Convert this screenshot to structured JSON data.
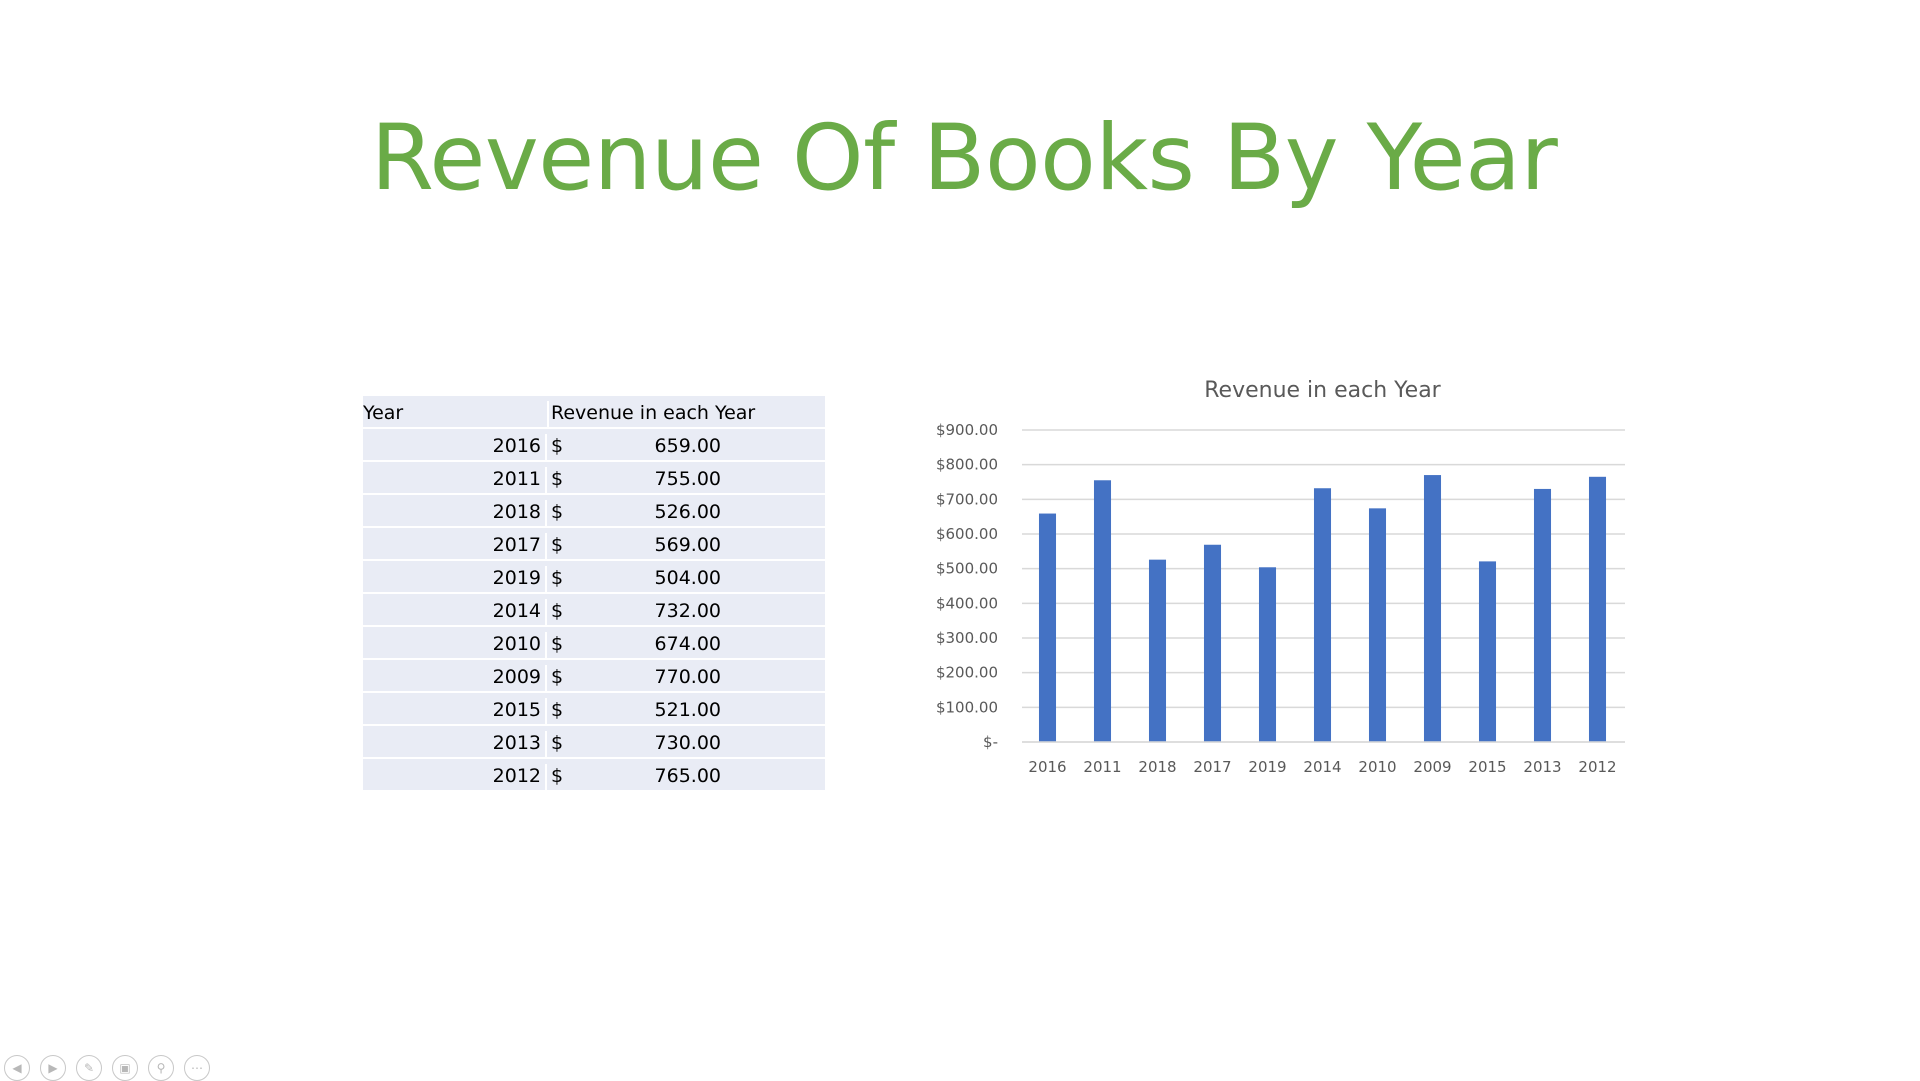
{
  "slide_title": "Revenue Of Books By Year",
  "table": {
    "headers": [
      "Year",
      "Revenue in each Year"
    ],
    "currency": "$",
    "rows": [
      {
        "year": "2016",
        "value": "659.00"
      },
      {
        "year": "2011",
        "value": "755.00"
      },
      {
        "year": "2018",
        "value": "526.00"
      },
      {
        "year": "2017",
        "value": "569.00"
      },
      {
        "year": "2019",
        "value": "504.00"
      },
      {
        "year": "2014",
        "value": "732.00"
      },
      {
        "year": "2010",
        "value": "674.00"
      },
      {
        "year": "2009",
        "value": "770.00"
      },
      {
        "year": "2015",
        "value": "521.00"
      },
      {
        "year": "2013",
        "value": "730.00"
      },
      {
        "year": "2012",
        "value": "765.00"
      }
    ]
  },
  "chart_data": {
    "type": "bar",
    "title": "Revenue in each Year",
    "xlabel": "",
    "ylabel": "",
    "categories": [
      "2016",
      "2011",
      "2018",
      "2017",
      "2019",
      "2014",
      "2010",
      "2009",
      "2015",
      "2013",
      "2012"
    ],
    "values": [
      659,
      755,
      526,
      569,
      504,
      732,
      674,
      770,
      521,
      730,
      765
    ],
    "ylim": [
      0,
      900
    ],
    "yticks": [
      0,
      100,
      200,
      300,
      400,
      500,
      600,
      700,
      800,
      900
    ],
    "ytick_labels": [
      "$-",
      "$100.00",
      "$200.00",
      "$300.00",
      "$400.00",
      "$500.00",
      "$600.00",
      "$700.00",
      "$800.00",
      "$900.00"
    ],
    "grid": true,
    "legend": "none",
    "colors": {
      "bar": "#4472c4",
      "grid": "#d9d9d9",
      "axis_text": "#595959",
      "title": "#595959"
    }
  },
  "presenter_toolbar": {
    "icons": [
      "previous-icon",
      "next-icon",
      "pen-icon",
      "slides-icon",
      "zoom-icon",
      "more-icon"
    ]
  }
}
